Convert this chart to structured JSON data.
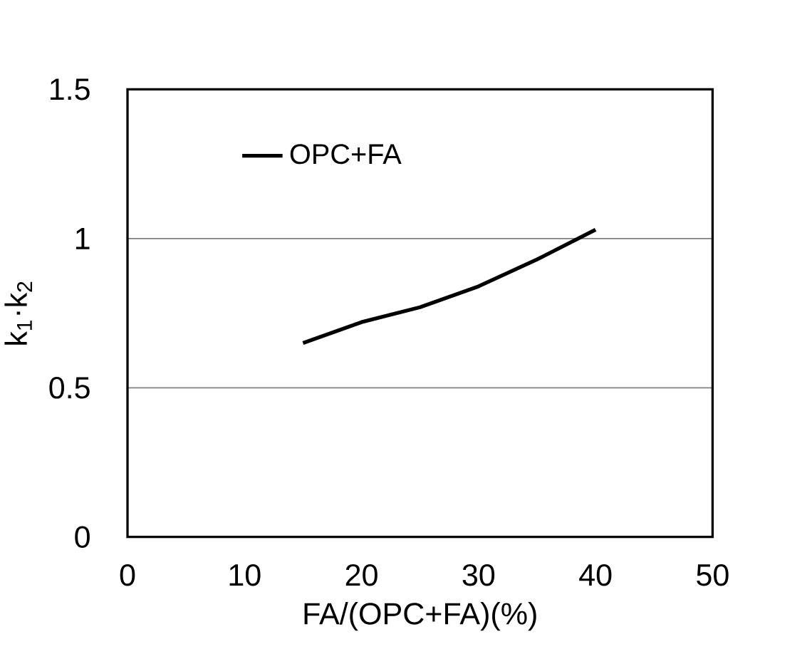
{
  "chart_data": {
    "type": "line",
    "xlabel": "FA/(OPC+FA)(%)",
    "ylabel": "k$_{1}$·k$_{2}$",
    "x": [
      15,
      20,
      25,
      30,
      35,
      40
    ],
    "series": [
      {
        "name": "OPC+FA",
        "color": "#000000",
        "values": [
          0.65,
          0.72,
          0.77,
          0.84,
          0.93,
          1.03
        ]
      }
    ],
    "xlim": [
      0,
      50
    ],
    "ylim": [
      0,
      1.5
    ],
    "xticks": [
      0,
      10,
      20,
      30,
      40,
      50
    ],
    "yticks": [
      0,
      0.5,
      1,
      1.5
    ],
    "grid": "y",
    "legend": "top left",
    "marker": "none",
    "line_style": "solid"
  }
}
